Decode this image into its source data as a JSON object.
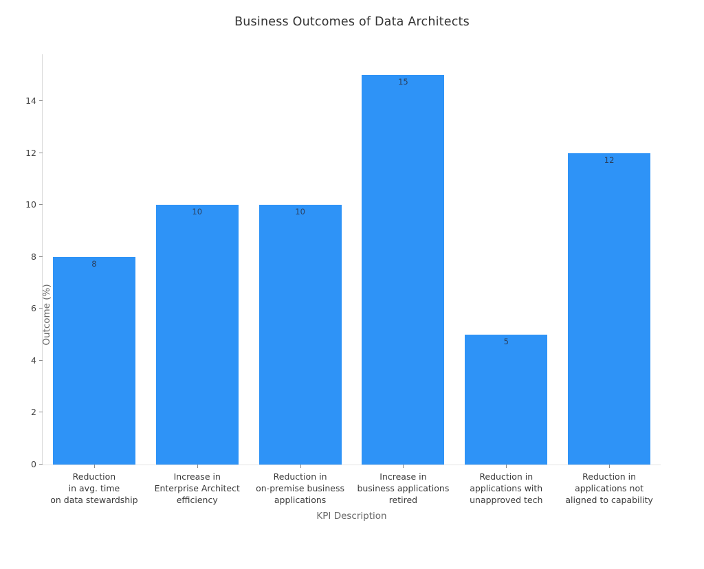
{
  "chart_data": {
    "type": "bar",
    "title": "Business Outcomes of Data Architects",
    "xlabel": "KPI Description",
    "ylabel": "Outcome (%)",
    "categories": [
      "Reduction\nin avg. time\non data stewardship",
      "Increase in\nEnterprise Architect\nefficiency",
      "Reduction in\non-premise business\napplications",
      "Increase in\nbusiness applications\nretired",
      "Reduction in\napplications with\nunapproved tech",
      "Reduction in\napplications not\naligned to capability"
    ],
    "values": [
      8,
      10,
      10,
      15,
      5,
      12
    ],
    "value_labels": [
      "8",
      "10",
      "10",
      "15",
      "5",
      "12"
    ],
    "yticks": [
      0,
      2,
      4,
      6,
      8,
      10,
      12,
      14
    ],
    "ylim": [
      0,
      15.8
    ],
    "grid": "off",
    "legend": "none",
    "colors": {
      "bar": "#2e93f7",
      "value_label": "#2a3f5f",
      "axis_line": "#d9d9d9",
      "tick_label": "#444444",
      "axis_title": "#666666",
      "title": "#333333",
      "background": "#ffffff"
    }
  }
}
